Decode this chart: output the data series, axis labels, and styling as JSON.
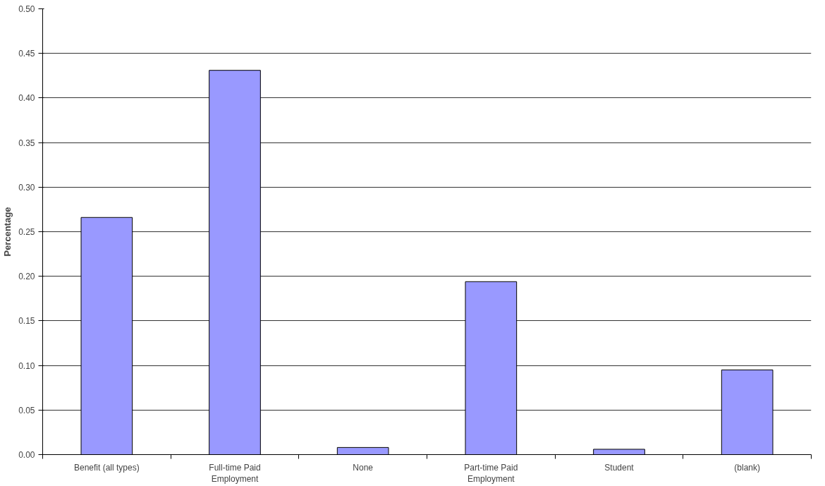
{
  "chart_data": {
    "type": "bar",
    "ylabel": "Percentage",
    "categories": [
      "Benefit (all types)",
      "Full-time Paid Employment",
      "None",
      "Part-time Paid Employment",
      "Student",
      "(blank)"
    ],
    "values": [
      0.266,
      0.431,
      0.008,
      0.194,
      0.006,
      0.095
    ],
    "color": "#9999ff",
    "ylim": [
      0,
      0.5
    ],
    "yticks": [
      {
        "value": 0,
        "label": "0.00"
      },
      {
        "value": 0.05,
        "label": "0.05"
      },
      {
        "value": 0.1,
        "label": "0.10"
      },
      {
        "value": 0.15,
        "label": "0.15"
      },
      {
        "value": 0.2,
        "label": "0.20"
      },
      {
        "value": 0.25,
        "label": "0.25"
      },
      {
        "value": 0.3,
        "label": "0.30"
      },
      {
        "value": 0.35,
        "label": "0.35"
      },
      {
        "value": 0.4,
        "label": "0.40"
      },
      {
        "value": 0.45,
        "label": "0.45"
      },
      {
        "value": 0.5,
        "label": "0.50"
      }
    ],
    "grid": "y"
  }
}
